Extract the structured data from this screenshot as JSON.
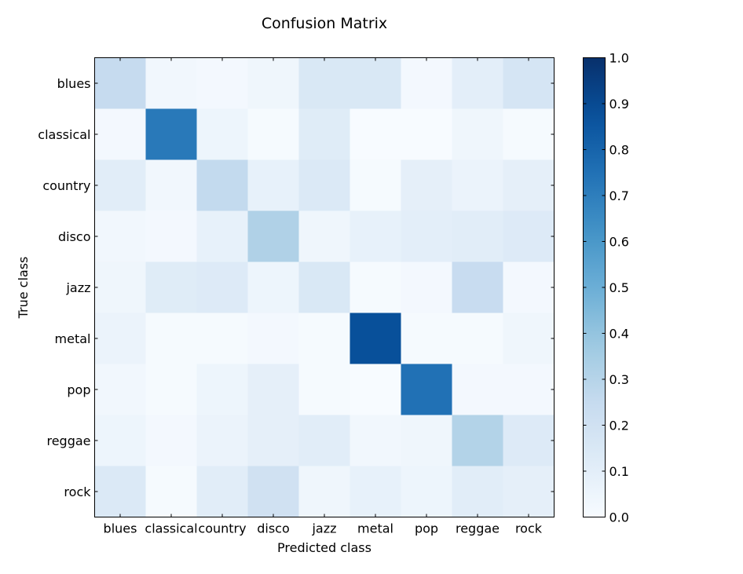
{
  "chart_data": {
    "type": "heatmap",
    "title": "Confusion Matrix",
    "xlabel": "Predicted class",
    "ylabel": "True class",
    "x_categories": [
      "blues",
      "classical",
      "country",
      "disco",
      "jazz",
      "metal",
      "pop",
      "reggae",
      "rock"
    ],
    "y_categories": [
      "blues",
      "classical",
      "country",
      "disco",
      "jazz",
      "metal",
      "pop",
      "reggae",
      "rock"
    ],
    "values": [
      [
        0.25,
        0.03,
        0.02,
        0.04,
        0.15,
        0.15,
        0.02,
        0.1,
        0.17
      ],
      [
        0.02,
        0.72,
        0.05,
        0.01,
        0.12,
        0.0,
        0.0,
        0.04,
        0.01
      ],
      [
        0.11,
        0.03,
        0.26,
        0.08,
        0.14,
        0.01,
        0.09,
        0.06,
        0.09
      ],
      [
        0.03,
        0.02,
        0.08,
        0.32,
        0.04,
        0.08,
        0.1,
        0.11,
        0.13
      ],
      [
        0.04,
        0.12,
        0.13,
        0.05,
        0.15,
        0.01,
        0.02,
        0.24,
        0.02
      ],
      [
        0.06,
        0.01,
        0.01,
        0.02,
        0.01,
        0.88,
        0.01,
        0.01,
        0.04
      ],
      [
        0.03,
        0.01,
        0.05,
        0.09,
        0.01,
        0.0,
        0.75,
        0.02,
        0.02
      ],
      [
        0.05,
        0.02,
        0.06,
        0.09,
        0.11,
        0.03,
        0.04,
        0.31,
        0.13
      ],
      [
        0.14,
        0.01,
        0.11,
        0.2,
        0.04,
        0.08,
        0.05,
        0.11,
        0.09
      ]
    ],
    "colorbar": {
      "range": [
        0.0,
        1.0
      ],
      "ticks": [
        "0.0",
        "0.1",
        "0.2",
        "0.3",
        "0.4",
        "0.5",
        "0.6",
        "0.7",
        "0.8",
        "0.9",
        "1.0"
      ],
      "colormap": "Blues"
    },
    "grid": false
  }
}
